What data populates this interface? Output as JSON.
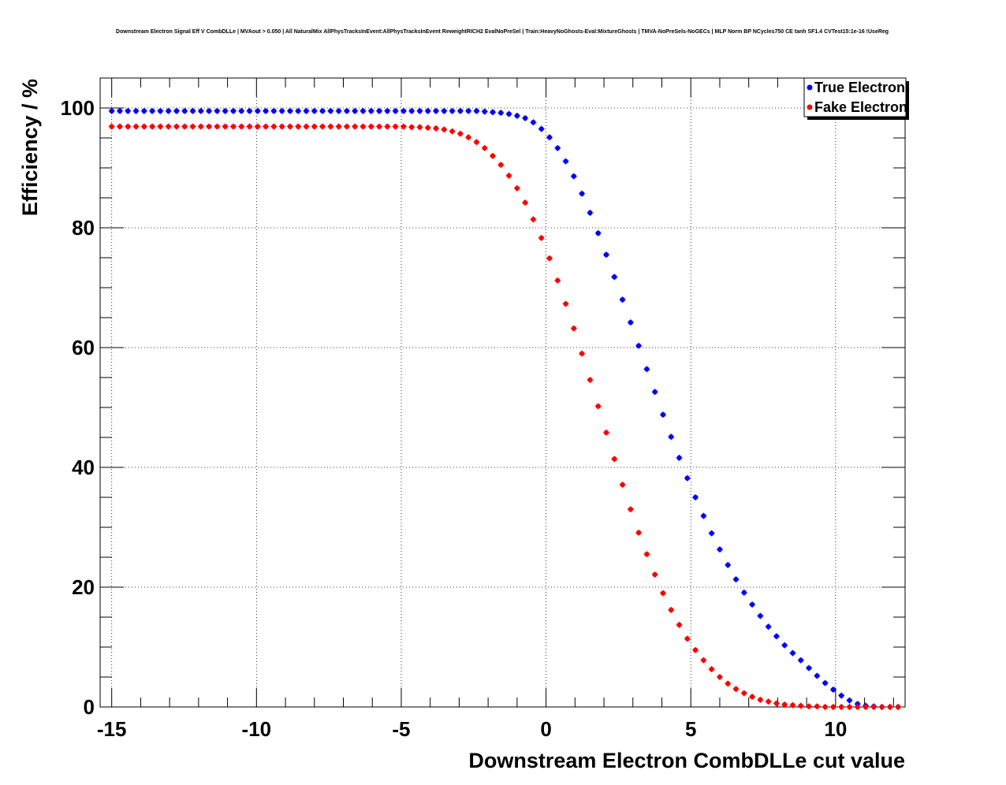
{
  "chart_data": {
    "type": "scatter",
    "title": "Downstream Electron Signal Eff V CombDLLe | MVAout > 0.050 | All NaturalMix AllPhysTracksInEvent:AllPhysTracksInEvent ReweightRICH2 EvalNoPreSel | Train:HeavyNoGhosts-Eval:MixtureGhosts | TMVA-NoPreSels-NoGECs | MLP Norm BP NCycles750 CE tanh SF1.4 CVTest15:1e-16 !UseReg",
    "xlabel": "Downstream Electron CombDLLe cut value",
    "ylabel": "Efficiency / %",
    "xlim": [
      -15.4,
      12.4
    ],
    "ylim": [
      0,
      105
    ],
    "x_ticks": [
      -15,
      -10,
      -5,
      0,
      5,
      10
    ],
    "x_tick_labels": [
      "-15",
      "-10",
      "-5",
      "0",
      "5",
      "10"
    ],
    "y_ticks": [
      0,
      20,
      40,
      60,
      80,
      100
    ],
    "y_tick_labels": [
      "0",
      "20",
      "40",
      "60",
      "80",
      "100"
    ],
    "grid": true,
    "legend_position": "top-right",
    "series": [
      {
        "name": "True Electron",
        "color": "#0000ff",
        "x": [
          -15.0,
          -14.72,
          -14.44,
          -14.16,
          -13.88,
          -13.6,
          -13.32,
          -13.04,
          -12.76,
          -12.48,
          -12.2,
          -11.92,
          -11.64,
          -11.36,
          -11.08,
          -10.8,
          -10.52,
          -10.24,
          -9.96,
          -9.68,
          -9.4,
          -9.12,
          -8.84,
          -8.56,
          -8.28,
          -8.0,
          -7.72,
          -7.44,
          -7.16,
          -6.88,
          -6.6,
          -6.32,
          -6.04,
          -5.76,
          -5.48,
          -5.2,
          -4.92,
          -4.64,
          -4.36,
          -4.08,
          -3.8,
          -3.52,
          -3.24,
          -2.96,
          -2.68,
          -2.4,
          -2.12,
          -1.84,
          -1.56,
          -1.28,
          -1.0,
          -0.72,
          -0.44,
          -0.16,
          0.12,
          0.4,
          0.68,
          0.96,
          1.24,
          1.52,
          1.8,
          2.08,
          2.36,
          2.64,
          2.92,
          3.2,
          3.48,
          3.76,
          4.04,
          4.32,
          4.6,
          4.88,
          5.16,
          5.44,
          5.72,
          6.0,
          6.28,
          6.56,
          6.84,
          7.12,
          7.4,
          7.68,
          7.96,
          8.24,
          8.52,
          8.8,
          9.08,
          9.36,
          9.64,
          9.92,
          10.2,
          10.48,
          10.76,
          11.04,
          11.32,
          11.6,
          11.88,
          12.16
        ],
        "y": [
          99.5,
          99.5,
          99.5,
          99.5,
          99.5,
          99.5,
          99.5,
          99.5,
          99.5,
          99.5,
          99.5,
          99.5,
          99.5,
          99.5,
          99.5,
          99.5,
          99.5,
          99.5,
          99.5,
          99.5,
          99.5,
          99.5,
          99.5,
          99.5,
          99.5,
          99.5,
          99.5,
          99.5,
          99.5,
          99.5,
          99.5,
          99.5,
          99.5,
          99.5,
          99.5,
          99.5,
          99.5,
          99.5,
          99.5,
          99.5,
          99.5,
          99.5,
          99.5,
          99.5,
          99.5,
          99.5,
          99.4,
          99.3,
          99.2,
          99.0,
          98.7,
          98.3,
          97.6,
          96.5,
          95.1,
          93.3,
          91.1,
          88.6,
          85.7,
          82.5,
          79.1,
          75.5,
          71.8,
          68.0,
          64.2,
          60.3,
          56.4,
          52.6,
          48.8,
          45.1,
          41.6,
          38.2,
          35.0,
          31.9,
          29.0,
          26.3,
          23.7,
          21.3,
          19.1,
          17.1,
          15.2,
          13.4,
          11.8,
          10.3,
          9.0,
          7.8,
          6.5,
          5.2,
          4.0,
          2.9,
          1.9,
          1.1,
          0.5,
          0.2,
          0.1,
          0.0,
          0.0,
          0.0
        ]
      },
      {
        "name": "Fake Electron",
        "color": "#ff0000",
        "x": [
          -15.0,
          -14.72,
          -14.44,
          -14.16,
          -13.88,
          -13.6,
          -13.32,
          -13.04,
          -12.76,
          -12.48,
          -12.2,
          -11.92,
          -11.64,
          -11.36,
          -11.08,
          -10.8,
          -10.52,
          -10.24,
          -9.96,
          -9.68,
          -9.4,
          -9.12,
          -8.84,
          -8.56,
          -8.28,
          -8.0,
          -7.72,
          -7.44,
          -7.16,
          -6.88,
          -6.6,
          -6.32,
          -6.04,
          -5.76,
          -5.48,
          -5.2,
          -4.92,
          -4.64,
          -4.36,
          -4.08,
          -3.8,
          -3.52,
          -3.24,
          -2.96,
          -2.68,
          -2.4,
          -2.12,
          -1.84,
          -1.56,
          -1.28,
          -1.0,
          -0.72,
          -0.44,
          -0.16,
          0.12,
          0.4,
          0.68,
          0.96,
          1.24,
          1.52,
          1.8,
          2.08,
          2.36,
          2.64,
          2.92,
          3.2,
          3.48,
          3.76,
          4.04,
          4.32,
          4.6,
          4.88,
          5.16,
          5.44,
          5.72,
          6.0,
          6.28,
          6.56,
          6.84,
          7.12,
          7.4,
          7.68,
          7.96,
          8.24,
          8.52,
          8.8,
          9.08,
          9.36,
          9.64,
          9.92,
          10.2,
          10.48,
          10.76,
          11.04,
          11.32,
          11.6,
          11.88,
          12.16
        ],
        "y": [
          96.9,
          96.9,
          96.9,
          96.9,
          96.9,
          96.9,
          96.9,
          96.9,
          96.9,
          96.9,
          96.9,
          96.9,
          96.9,
          96.9,
          96.9,
          96.9,
          96.9,
          96.9,
          96.9,
          96.9,
          96.9,
          96.9,
          96.9,
          96.9,
          96.9,
          96.9,
          96.9,
          96.9,
          96.9,
          96.9,
          96.9,
          96.9,
          96.9,
          96.9,
          96.9,
          96.9,
          96.9,
          96.8,
          96.8,
          96.7,
          96.6,
          96.4,
          96.1,
          95.7,
          95.1,
          94.3,
          93.3,
          92.0,
          90.5,
          88.7,
          86.6,
          84.2,
          81.4,
          78.3,
          74.9,
          71.2,
          67.3,
          63.2,
          59.0,
          54.6,
          50.2,
          45.8,
          41.4,
          37.1,
          33.0,
          29.1,
          25.5,
          22.1,
          19.0,
          16.2,
          13.7,
          11.4,
          9.5,
          7.8,
          6.3,
          5.0,
          3.9,
          3.0,
          2.3,
          1.7,
          1.2,
          0.9,
          0.6,
          0.4,
          0.3,
          0.2,
          0.1,
          0.1,
          0.0,
          0.0,
          0.0,
          0.0,
          0.0,
          0.0,
          0.0,
          0.0,
          0.0,
          0.0
        ]
      }
    ]
  }
}
